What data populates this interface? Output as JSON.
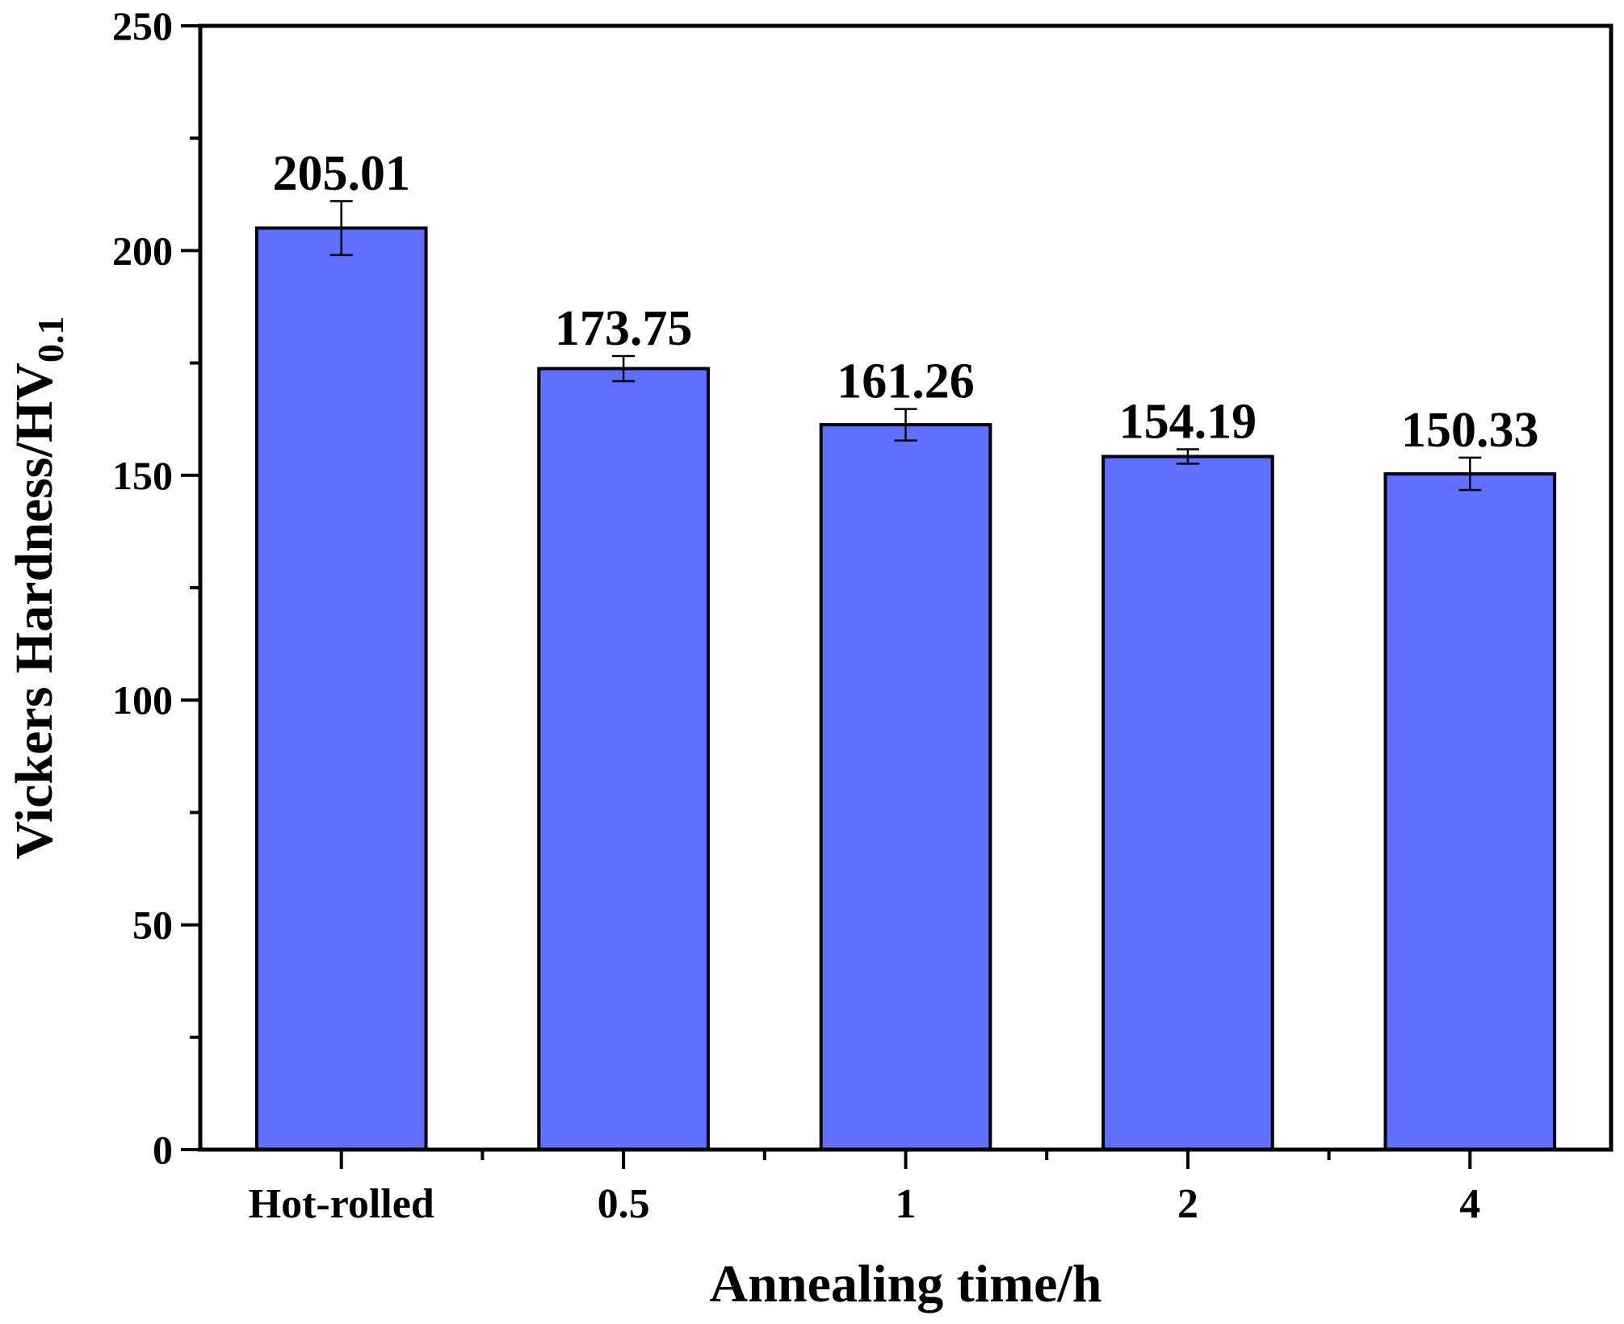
{
  "chart_data": {
    "type": "bar",
    "title": "",
    "xlabel": "Annealing time/h",
    "ylabel_main": "Vickers Hardness/HV",
    "ylabel_sub": "0.1",
    "categories": [
      "Hot-rolled",
      "0.5",
      "1",
      "2",
      "4"
    ],
    "values": [
      205.01,
      173.75,
      161.26,
      154.19,
      150.33
    ],
    "value_labels": [
      "205.01",
      "173.75",
      "161.26",
      "154.19",
      "150.33"
    ],
    "errors": [
      6,
      2.8,
      3.5,
      1.6,
      3.6
    ],
    "ylim": [
      0,
      250
    ],
    "yticks": [
      0,
      50,
      100,
      150,
      200,
      250
    ],
    "yminor_step": 25,
    "bar_color": "#5f6fff",
    "edge_color": "#000000"
  }
}
